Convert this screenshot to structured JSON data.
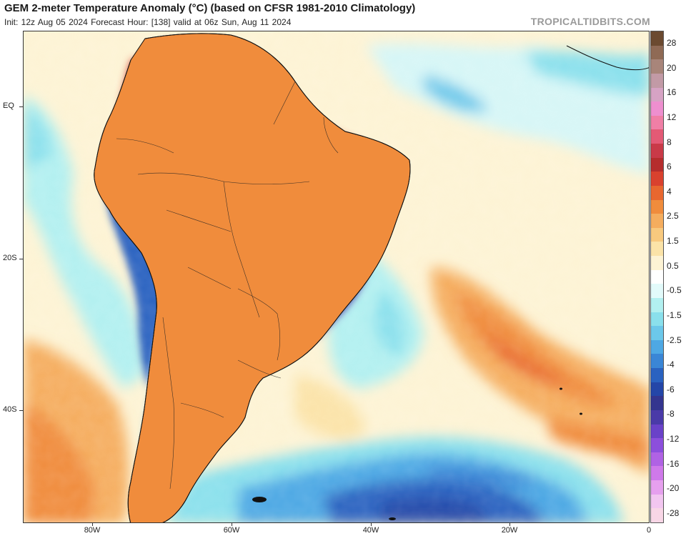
{
  "header": {
    "title": "GEM 2-meter Temperature Anomaly (°C) (based on CFSR 1981-2010 Climatology)",
    "subtitle": "Init: 12z Aug 05 2024   Forecast Hour: [138]   valid at 06z Sun, Aug 11 2024",
    "brand": "TROPICALTIDBITS.COM"
  },
  "map": {
    "region": "South America and South Atlantic",
    "lat_labels": [
      {
        "text": "EQ"
      },
      {
        "text": "20S"
      },
      {
        "text": "40S"
      }
    ],
    "lon_labels": [
      {
        "text": "80W"
      },
      {
        "text": "60W"
      },
      {
        "text": "40W"
      },
      {
        "text": "20W"
      },
      {
        "text": "0"
      }
    ]
  },
  "colorbar": {
    "labels": [
      "28",
      "20",
      "16",
      "12",
      "8",
      "6",
      "4",
      "2.5",
      "1.5",
      "0.5",
      "-0.5",
      "-1.5",
      "-2.5",
      "-4",
      "-6",
      "-8",
      "-12",
      "-16",
      "-20",
      "-28"
    ],
    "colors_top_to_bottom": [
      "#6b4a30",
      "#8f6a55",
      "#a8857a",
      "#c29aa6",
      "#d6a3c4",
      "#ee8fcf",
      "#f07fa6",
      "#e35a75",
      "#c93a48",
      "#b52d2d",
      "#d9412e",
      "#e8672f",
      "#f08c3c",
      "#f5ad5e",
      "#f8c97e",
      "#fbe3a8",
      "#fdf3d4",
      "#ffffff",
      "#e2fafa",
      "#b2f0f0",
      "#8ae0ec",
      "#6cc8ea",
      "#4ea8e4",
      "#3a86d6",
      "#2a62c0",
      "#2446a8",
      "#34358f",
      "#4a3aa8",
      "#6a42c8",
      "#8c4fdc",
      "#b062e4",
      "#cf79ea",
      "#e6a0ee",
      "#f2c6f0",
      "#f8d6e6"
    ]
  }
}
